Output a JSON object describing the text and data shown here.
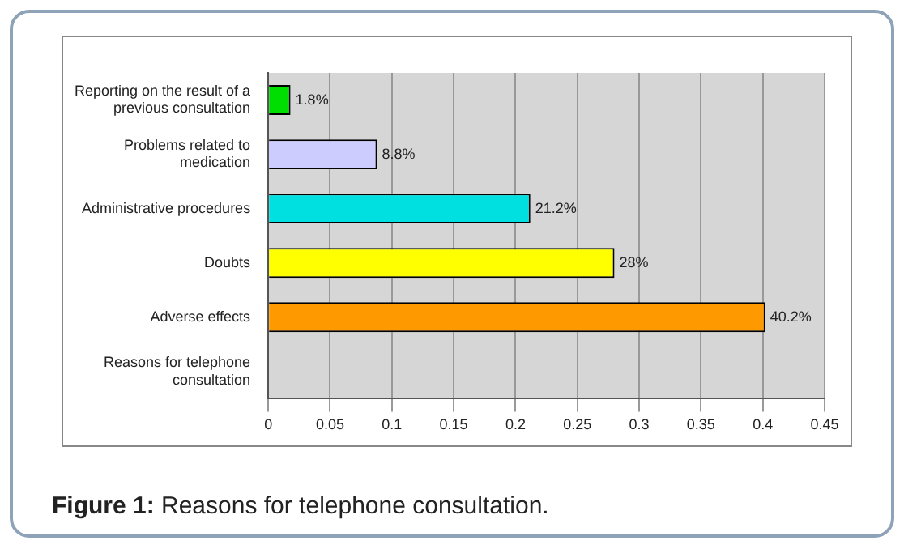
{
  "chart_data": {
    "type": "bar",
    "orientation": "horizontal",
    "categories": [
      "Reporting on the result of a previous consultation",
      "Problems related to medication",
      "Administrative procedures",
      "Doubts",
      "Adverse effects",
      "Reasons for telephone consultation"
    ],
    "values": [
      0.018,
      0.088,
      0.212,
      0.28,
      0.402,
      null
    ],
    "colors": [
      "#00dd00",
      "#ccccff",
      "#00e0e0",
      "#ffff00",
      "#ff9900",
      "#cccccc"
    ],
    "value_labels": [
      "1.8%",
      "8.8%",
      "21.2%",
      "28%",
      "40.2%",
      null
    ],
    "xlim": [
      0,
      0.45
    ],
    "xticks": [
      0,
      0.05,
      0.1,
      0.15,
      0.2,
      0.25,
      0.3,
      0.35,
      0.4,
      0.45
    ],
    "grid": "x",
    "legend": false,
    "annotations": [
      "Figure 1: Reasons for telephone consultation."
    ]
  }
}
